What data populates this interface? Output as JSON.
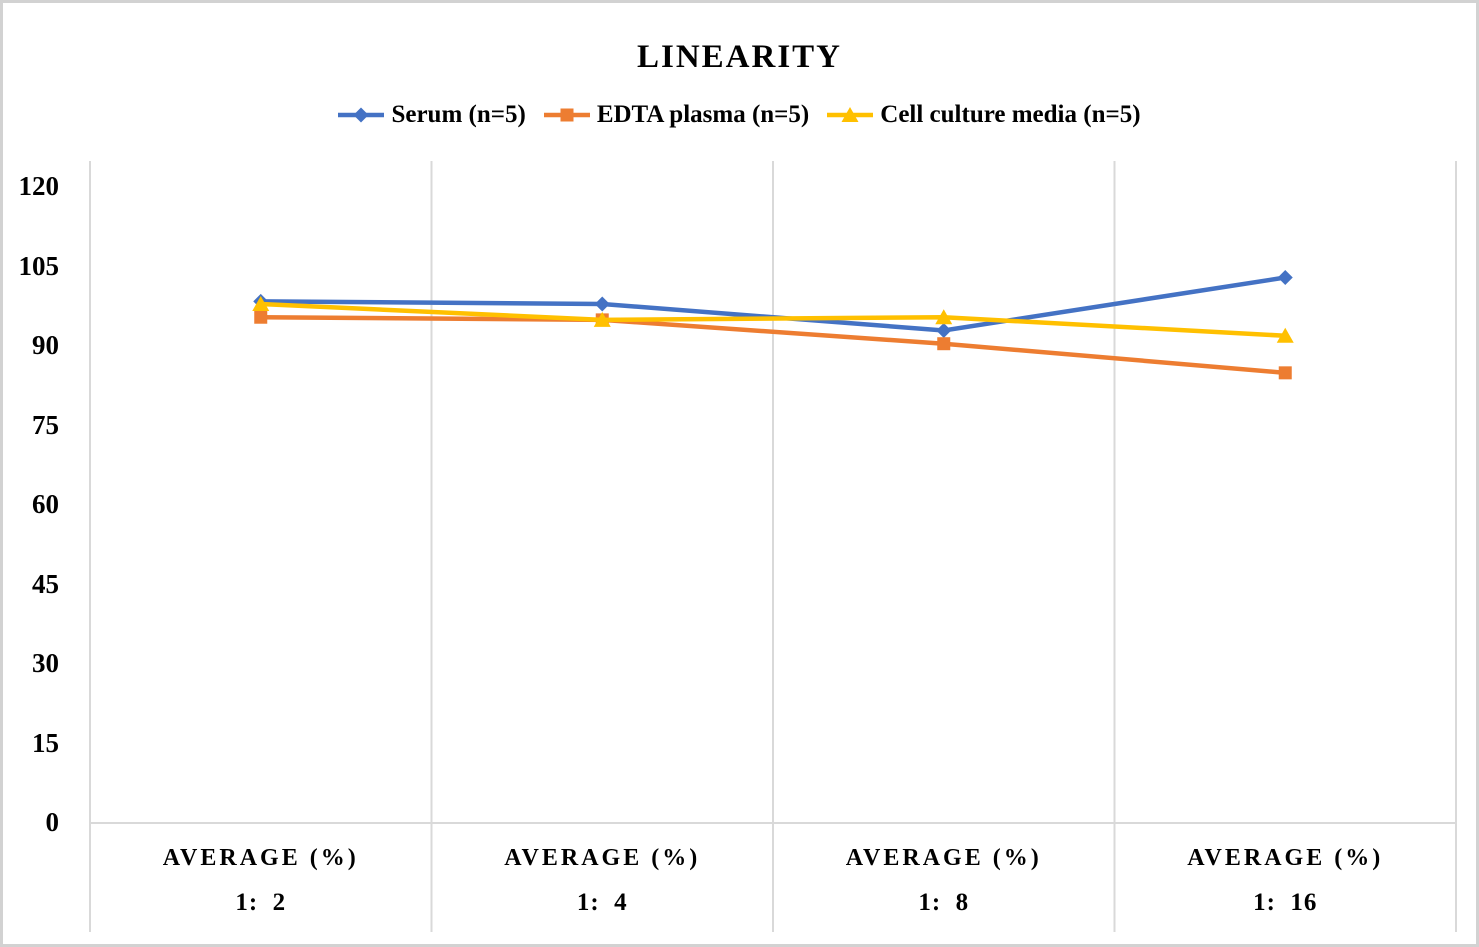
{
  "chart_data": {
    "type": "line",
    "title": "LINEARITY",
    "legend_position": "top",
    "grid": "vertical-only",
    "xlabel": "",
    "ylabel": "",
    "ylim": [
      0,
      120
    ],
    "ytick_step": 15,
    "yticks": [
      0,
      15,
      30,
      45,
      60,
      75,
      90,
      105,
      120
    ],
    "categories": [
      {
        "header": "AVERAGE (%)",
        "ratio": "1:  2"
      },
      {
        "header": "AVERAGE (%)",
        "ratio": "1:  4"
      },
      {
        "header": "AVERAGE (%)",
        "ratio": "1:  8"
      },
      {
        "header": "AVERAGE (%)",
        "ratio": "1:  16"
      }
    ],
    "series": [
      {
        "name": "Serum (n=5)",
        "color": "#4472C4",
        "marker": "diamond",
        "values": [
          98.5,
          98,
          93,
          103
        ]
      },
      {
        "name": "EDTA plasma (n=5)",
        "color": "#ED7D31",
        "marker": "square",
        "values": [
          95.5,
          95,
          90.5,
          85
        ]
      },
      {
        "name": "Cell culture media (n=5)",
        "color": "#FFC000",
        "marker": "triangle",
        "values": [
          98,
          95,
          95.5,
          92
        ]
      }
    ]
  },
  "colors": {
    "gridline": "#D9D9D9",
    "axis_line": "#D9D9D9",
    "text": "#000000",
    "frame_border": "#D2D2D2",
    "background": "#FFFFFF"
  }
}
